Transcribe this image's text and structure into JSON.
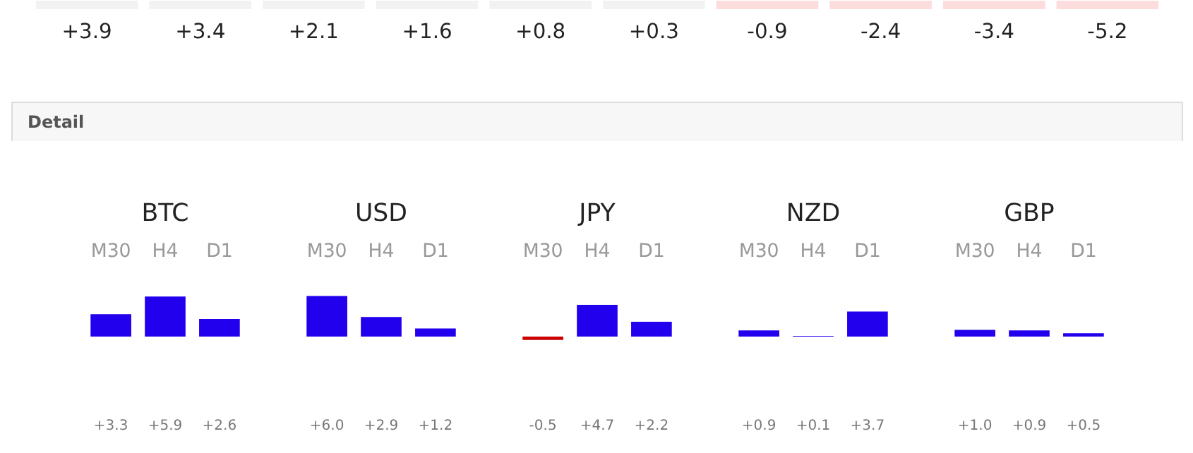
{
  "chart_data": [
    {
      "type": "other",
      "categories": [
        null,
        null,
        null,
        null,
        null,
        null,
        null,
        null,
        null,
        null
      ],
      "values": [
        3.9,
        3.4,
        2.1,
        1.6,
        0.8,
        0.3,
        -0.9,
        -2.4,
        -3.4,
        -5.2
      ],
      "colors": [
        "#f2f2f2",
        "#f2f2f2",
        "#f2f2f2",
        "#f2f2f2",
        "#f2f2f2",
        "#f2f2f2",
        "#fcdcdc",
        "#fcdcdc",
        "#fcdcdc",
        "#fcdcdc"
      ],
      "value_labels": [
        "+3.9",
        "+3.4",
        "+2.1",
        "+1.6",
        "+0.8",
        "+0.3",
        "-0.9",
        "-2.4",
        "-3.4",
        "-5.2"
      ]
    },
    {
      "type": "other",
      "title": "Detail"
    },
    {
      "type": "bar",
      "title": "BTC",
      "categories": [
        "M30",
        "H4",
        "D1"
      ],
      "values": [
        3.3,
        5.9,
        2.6
      ],
      "colors": [
        "#2200ee",
        "#2200ee",
        "#2200ee"
      ],
      "value_labels": [
        "+3.3",
        "+5.9",
        "+2.6"
      ]
    },
    {
      "type": "bar",
      "title": "USD",
      "categories": [
        "M30",
        "H4",
        "D1"
      ],
      "values": [
        6.0,
        2.9,
        1.2
      ],
      "colors": [
        "#2200ee",
        "#2200ee",
        "#2200ee"
      ],
      "value_labels": [
        "+6.0",
        "+2.9",
        "+1.2"
      ]
    },
    {
      "type": "bar",
      "title": "JPY",
      "categories": [
        "M30",
        "H4",
        "D1"
      ],
      "values": [
        -0.5,
        4.7,
        2.2
      ],
      "colors": [
        "#cc0000",
        "#2200ee",
        "#2200ee"
      ],
      "value_labels": [
        "-0.5",
        "+4.7",
        "+2.2"
      ]
    },
    {
      "type": "bar",
      "title": "NZD",
      "categories": [
        "M30",
        "H4",
        "D1"
      ],
      "values": [
        0.9,
        0.1,
        3.7
      ],
      "colors": [
        "#2200ee",
        "#2200ee",
        "#2200ee"
      ],
      "value_labels": [
        "+0.9",
        "+0.1",
        "+3.7"
      ]
    },
    {
      "type": "bar",
      "title": "GBP",
      "categories": [
        "M30",
        "H4",
        "D1"
      ],
      "values": [
        1.0,
        0.9,
        0.5
      ],
      "colors": [
        "#2200ee",
        "#2200ee",
        "#2200ee"
      ],
      "value_labels": [
        "+1.0",
        "+0.9",
        "+0.5"
      ]
    }
  ]
}
